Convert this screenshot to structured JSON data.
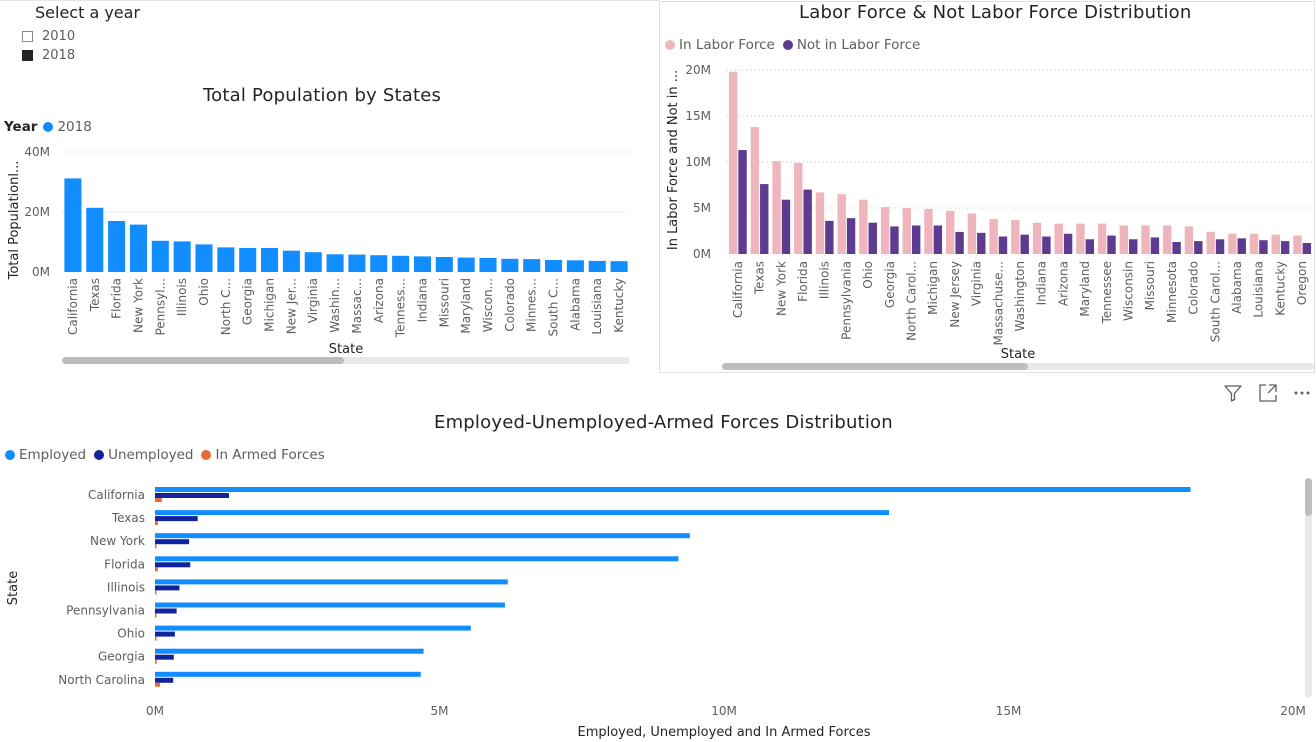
{
  "slicer": {
    "title": "Select a year",
    "options": [
      {
        "label": "2010",
        "checked": false
      },
      {
        "label": "2018",
        "checked": true
      }
    ]
  },
  "chart_data": [
    {
      "id": "population",
      "type": "bar",
      "title": "Total Population by States",
      "legend_title": "Year",
      "series": [
        {
          "name": "2018",
          "color": "#118dff",
          "values": [
            31.2,
            21.4,
            17.0,
            15.8,
            10.4,
            10.2,
            9.2,
            8.2,
            8.0,
            8.0,
            7.1,
            6.6,
            5.9,
            5.8,
            5.6,
            5.4,
            5.2,
            5.0,
            4.8,
            4.7,
            4.4,
            4.3,
            4.0,
            3.9,
            3.7,
            3.6
          ]
        }
      ],
      "categories": [
        "California",
        "Texas",
        "Florida",
        "New York",
        "Pennsyl...",
        "Illinois",
        "Ohio",
        "North C...",
        "Georgia",
        "Michigan",
        "New Jer...",
        "Virginia",
        "Washin...",
        "Massac...",
        "Arizona",
        "Tenness...",
        "Indiana",
        "Missouri",
        "Maryland",
        "Wiscon...",
        "Colorado",
        "Minnes...",
        "South C...",
        "Alabama",
        "Louisiana",
        "Kentucky"
      ],
      "xlabel": "State",
      "ylabel": "Total Populationl...",
      "yticks": [
        "0M",
        "20M",
        "40M"
      ],
      "ylim": [
        0,
        40
      ],
      "value_unit": "M",
      "grid": true
    },
    {
      "id": "labor",
      "type": "bar",
      "title": "Labor Force & Not Labor Force Distribution",
      "series": [
        {
          "name": "In Labor Force",
          "color": "#efb5bc",
          "values": [
            19.8,
            13.8,
            10.1,
            9.9,
            6.7,
            6.5,
            5.9,
            5.1,
            5.0,
            4.9,
            4.7,
            4.4,
            3.8,
            3.7,
            3.4,
            3.3,
            3.3,
            3.3,
            3.1,
            3.1,
            3.1,
            3.0,
            2.4,
            2.2,
            2.2,
            2.1,
            2.0
          ]
        },
        {
          "name": "Not in Labor Force",
          "color": "#5c3b91",
          "values": [
            11.3,
            7.6,
            5.9,
            7.0,
            3.6,
            3.9,
            3.4,
            3.0,
            3.1,
            3.1,
            2.4,
            2.3,
            1.9,
            2.1,
            1.9,
            2.2,
            1.6,
            2.0,
            1.6,
            1.8,
            1.3,
            1.4,
            1.6,
            1.7,
            1.5,
            1.4,
            1.2
          ]
        }
      ],
      "categories": [
        "California",
        "Texas",
        "New York",
        "Florida",
        "Illinois",
        "Pennsylvania",
        "Ohio",
        "Georgia",
        "North Carol...",
        "Michigan",
        "New Jersey",
        "Virginia",
        "Massachuse...",
        "Washington",
        "Indiana",
        "Arizona",
        "Maryland",
        "Tennessee",
        "Wisconsin",
        "Missouri",
        "Minnesota",
        "Colorado",
        "South Carol...",
        "Alabama",
        "Louisiana",
        "Kentucky",
        "Oregon"
      ],
      "xlabel": "State",
      "ylabel": "In Labor Force and Not in ...",
      "yticks": [
        "0M",
        "5M",
        "10M",
        "15M",
        "20M"
      ],
      "ylim": [
        0,
        20
      ],
      "value_unit": "M",
      "grid": true
    },
    {
      "id": "employment",
      "type": "bar",
      "orientation": "horizontal",
      "title": "Employed-Unemployed-Armed Forces Distribution",
      "series": [
        {
          "name": "Employed",
          "color": "#118dff",
          "values": [
            18.2,
            12.9,
            9.4,
            9.2,
            6.2,
            6.15,
            5.55,
            4.72,
            4.67
          ]
        },
        {
          "name": "Unemployed",
          "color": "#12239e",
          "values": [
            1.3,
            0.75,
            0.6,
            0.62,
            0.43,
            0.38,
            0.35,
            0.33,
            0.32
          ]
        },
        {
          "name": "In Armed Forces",
          "color": "#e66c37",
          "values": [
            0.12,
            0.05,
            0.02,
            0.05,
            0.01,
            0.01,
            0.01,
            0.03,
            0.09
          ]
        }
      ],
      "categories": [
        "California",
        "Texas",
        "New York",
        "Florida",
        "Illinois",
        "Pennsylvania",
        "Ohio",
        "Georgia",
        "North Carolina"
      ],
      "xlabel": "Employed, Unemployed and In Armed Forces",
      "ylabel": "State",
      "xticks": [
        "0M",
        "5M",
        "10M",
        "15M",
        "20M"
      ],
      "xlim": [
        0,
        20
      ],
      "value_unit": "M",
      "grid": false
    }
  ],
  "icons": {
    "filter": "filter-icon",
    "focus": "focus-mode-icon",
    "more": "more-options-icon"
  }
}
